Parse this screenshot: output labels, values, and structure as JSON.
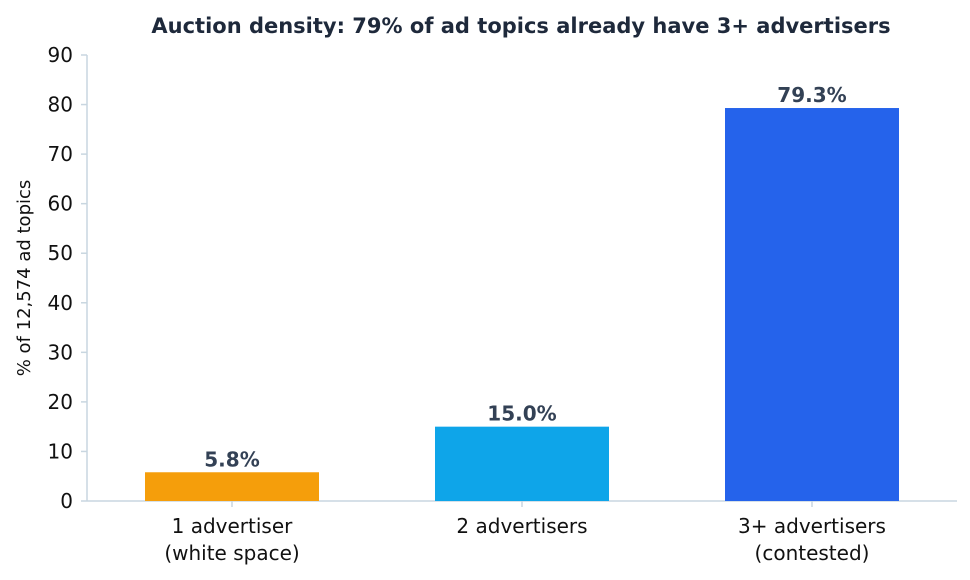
{
  "chart_data": {
    "type": "bar",
    "title": "Auction density: 79% of ad topics already have 3+ advertisers",
    "ylabel": "% of 12,574 ad topics",
    "xlabel": "",
    "ylim": [
      0,
      90
    ],
    "yticks": [
      0,
      10,
      20,
      30,
      40,
      50,
      60,
      70,
      80,
      90
    ],
    "categories": [
      [
        "1 advertiser",
        "(white space)"
      ],
      [
        "2 advertisers"
      ],
      [
        "3+ advertisers",
        "(contested)"
      ]
    ],
    "values": [
      5.8,
      15.0,
      79.3
    ],
    "data_labels": [
      "5.8%",
      "15.0%",
      "79.3%"
    ],
    "colors": [
      "#f59e0b",
      "#0ea5e9",
      "#2563eb"
    ],
    "grid": false,
    "legend": "none"
  }
}
